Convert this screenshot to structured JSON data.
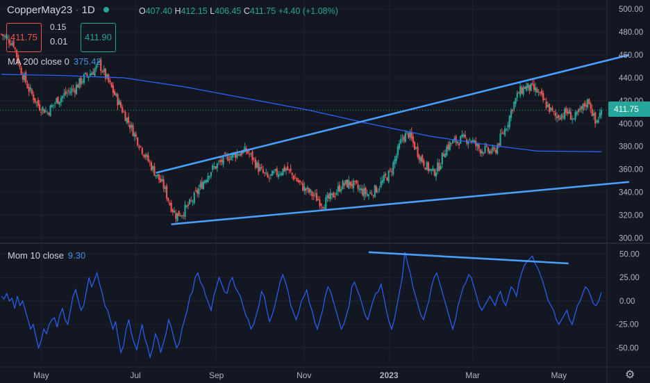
{
  "header": {
    "symbol": "CopperMay23",
    "interval": "1D",
    "open_label": "O",
    "open": "407.40",
    "high_label": "H",
    "high": "412.15",
    "low_label": "L",
    "low": "406.45",
    "close_label": "C",
    "close": "411.75",
    "change": "+4.40 (+1.08%)"
  },
  "trade": {
    "sell_price": "411.75",
    "buy_price": "411.90",
    "spread_top": "0.15",
    "spread_bottom": "0.01"
  },
  "ma_indicator": {
    "label": "MA 200 close 0",
    "value": "375.42"
  },
  "mom_indicator": {
    "label": "Mom 10 close",
    "value": "9.30"
  },
  "last_price_label": "411.75",
  "colors": {
    "up": "#26a69a",
    "down": "#ef5350",
    "ma": "#2962ff",
    "trendline": "#4a9eff",
    "background": "#131722"
  },
  "chart_data": [
    {
      "type": "candlestick",
      "y_ticks": [
        "500.00",
        "480.00",
        "460.00",
        "440.00",
        "420.00",
        "400.00",
        "380.00",
        "360.00",
        "340.00",
        "320.00",
        "300.00"
      ],
      "ylim": [
        296,
        508
      ],
      "x_ticks": [
        "May",
        "Jul",
        "Sep",
        "Nov",
        "2023",
        "Mar",
        "May"
      ],
      "anchors": [
        [
          0,
          478
        ],
        [
          8,
          470
        ],
        [
          12,
          449
        ],
        [
          18,
          430
        ],
        [
          24,
          416
        ],
        [
          30,
          410
        ],
        [
          36,
          420
        ],
        [
          42,
          426
        ],
        [
          48,
          431
        ],
        [
          54,
          440
        ],
        [
          60,
          446
        ],
        [
          64,
          452
        ],
        [
          70,
          436
        ],
        [
          76,
          420
        ],
        [
          82,
          404
        ],
        [
          88,
          388
        ],
        [
          94,
          372
        ],
        [
          100,
          358
        ],
        [
          106,
          345
        ],
        [
          110,
          330
        ],
        [
          114,
          320
        ],
        [
          118,
          322
        ],
        [
          124,
          331
        ],
        [
          130,
          345
        ],
        [
          136,
          358
        ],
        [
          142,
          365
        ],
        [
          148,
          371
        ],
        [
          154,
          374
        ],
        [
          160,
          376
        ],
        [
          164,
          370
        ],
        [
          168,
          361
        ],
        [
          174,
          352
        ],
        [
          180,
          357
        ],
        [
          186,
          361
        ],
        [
          192,
          352
        ],
        [
          198,
          343
        ],
        [
          204,
          337
        ],
        [
          210,
          330
        ],
        [
          216,
          336
        ],
        [
          222,
          346
        ],
        [
          228,
          348
        ],
        [
          234,
          342
        ],
        [
          240,
          338
        ],
        [
          246,
          344
        ],
        [
          250,
          351
        ],
        [
          254,
          357
        ],
        [
          258,
          372
        ],
        [
          262,
          388
        ],
        [
          266,
          391
        ],
        [
          270,
          380
        ],
        [
          274,
          370
        ],
        [
          278,
          362
        ],
        [
          282,
          357
        ],
        [
          286,
          363
        ],
        [
          290,
          378
        ],
        [
          294,
          383
        ],
        [
          300,
          386
        ],
        [
          306,
          387
        ],
        [
          312,
          378
        ],
        [
          318,
          376
        ],
        [
          322,
          375
        ],
        [
          326,
          387
        ],
        [
          330,
          398
        ],
        [
          334,
          415
        ],
        [
          338,
          427
        ],
        [
          342,
          432
        ],
        [
          346,
          431
        ],
        [
          350,
          428
        ],
        [
          354,
          420
        ],
        [
          358,
          413
        ],
        [
          362,
          406
        ],
        [
          366,
          408
        ],
        [
          370,
          410
        ],
        [
          374,
          404
        ],
        [
          378,
          410
        ],
        [
          382,
          418
        ],
        [
          384,
          420
        ],
        [
          386,
          410
        ],
        [
          388,
          400
        ],
        [
          390,
          405
        ],
        [
          392,
          411.75
        ]
      ],
      "last": 411.75,
      "ma": {
        "name": "MA 200",
        "points": [
          [
            0,
            443
          ],
          [
            40,
            442
          ],
          [
            80,
            440
          ],
          [
            120,
            432
          ],
          [
            160,
            422
          ],
          [
            200,
            412
          ],
          [
            240,
            400
          ],
          [
            280,
            389
          ],
          [
            320,
            381
          ],
          [
            350,
            376
          ],
          [
            392,
            375.42
          ]
        ]
      },
      "trendlines": [
        {
          "points": [
            [
              101,
              357
            ],
            [
              392,
              460
            ]
          ]
        },
        {
          "points": [
            [
              111,
              312
            ],
            [
              392,
              349
            ]
          ]
        }
      ]
    },
    {
      "type": "line",
      "name": "Mom 10",
      "y_ticks": [
        "50.00",
        "25.00",
        "0.00",
        "-25.00",
        "-50.00"
      ],
      "ylim": [
        -63,
        60
      ],
      "values": [
        5,
        2,
        8,
        0,
        3,
        -8,
        5,
        -5,
        0,
        -10,
        -20,
        -30,
        -25,
        -38,
        -50,
        -42,
        -30,
        -35,
        -25,
        -20,
        -18,
        -28,
        -15,
        -8,
        -20,
        -25,
        -10,
        5,
        12,
        0,
        -10,
        -5,
        10,
        25,
        15,
        22,
        30,
        18,
        8,
        -5,
        -10,
        -20,
        -30,
        -22,
        -40,
        -55,
        -48,
        -30,
        -20,
        -35,
        -45,
        -52,
        -38,
        -25,
        -40,
        -48,
        -60,
        -50,
        -35,
        -42,
        -55,
        -45,
        -35,
        -20,
        -28,
        -40,
        -50,
        -45,
        -30,
        -20,
        -10,
        5,
        10,
        25,
        30,
        20,
        15,
        5,
        -2,
        -10,
        5,
        15,
        25,
        18,
        10,
        8,
        20,
        25,
        15,
        10,
        5,
        -5,
        -15,
        -20,
        -30,
        -25,
        -15,
        -5,
        10,
        5,
        -10,
        -22,
        -15,
        -5,
        8,
        20,
        28,
        20,
        10,
        -5,
        -12,
        -20,
        -12,
        0,
        5,
        12,
        -2,
        -10,
        -22,
        -30,
        -20,
        -10,
        5,
        15,
        10,
        0,
        -10,
        -20,
        -30,
        -25,
        -15,
        -5,
        15,
        20,
        12,
        5,
        -5,
        -15,
        -20,
        -10,
        0,
        8,
        10,
        18,
        5,
        -10,
        -22,
        -30,
        -20,
        -5,
        10,
        25,
        52,
        40,
        30,
        15,
        5,
        -5,
        -15,
        -20,
        -10,
        0,
        15,
        25,
        30,
        20,
        10,
        0,
        -10,
        -20,
        -30,
        -20,
        -5,
        5,
        15,
        20,
        28,
        25,
        15,
        5,
        -5,
        -10,
        -5,
        0,
        5,
        0,
        -5,
        5,
        10,
        0,
        -5,
        5,
        15,
        12,
        5,
        20,
        30,
        38,
        42,
        45,
        48,
        40,
        35,
        28,
        20,
        10,
        0,
        -5,
        -10,
        -20,
        -25,
        -20,
        -15,
        -10,
        -20,
        -25,
        -15,
        -5,
        0,
        8,
        15,
        12,
        5,
        -3,
        -5,
        0,
        9.3
      ],
      "trendline": {
        "points": [
          [
            240,
            52
          ],
          [
            356,
            40
          ]
        ]
      }
    }
  ]
}
